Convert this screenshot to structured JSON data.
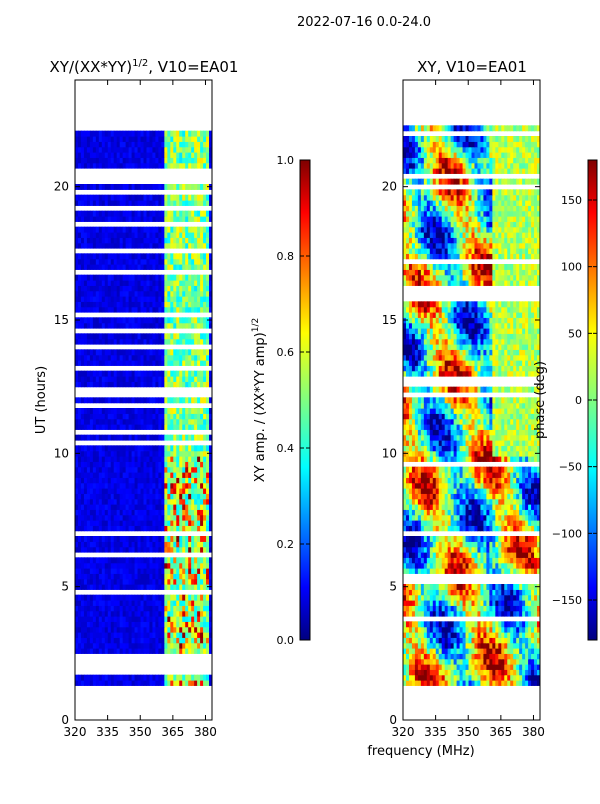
{
  "suptitle": "2022-07-16 0.0-24.0",
  "xlabel": "frequency (MHz)",
  "chart_data": [
    {
      "type": "heatmap",
      "title_main": "XY/(XX*YY)",
      "title_sup": "1/2",
      "title_tail": ", V10=EA01",
      "ylabel": "UT (hours)",
      "xlim": [
        320,
        383
      ],
      "ylim": [
        0,
        24
      ],
      "xticks": [
        320,
        335,
        350,
        365,
        380
      ],
      "yticks": [
        0,
        5,
        10,
        15,
        20
      ],
      "data_y_range": [
        1.3,
        22.3
      ],
      "colorbar": {
        "label_main": "XY amp. / (XX*YY amp)",
        "label_sup": "1/2",
        "range": [
          0.0,
          1.0
        ],
        "ticks": [
          "0.0",
          "0.2",
          "0.4",
          "0.6",
          "0.8",
          "1.0"
        ],
        "colormap": "jet"
      }
    },
    {
      "type": "heatmap",
      "title_main": "XY, V10=EA01",
      "ylabel": "",
      "xlim": [
        320,
        383
      ],
      "ylim": [
        0,
        24
      ],
      "xticks": [
        320,
        335,
        350,
        365,
        380
      ],
      "yticks": [
        0,
        5,
        10,
        15,
        20
      ],
      "data_y_range": [
        1.3,
        22.3
      ],
      "colorbar": {
        "label_main": "phase (deg)",
        "range": [
          -180,
          180
        ],
        "ticks": [
          "150",
          "100",
          "50",
          "0",
          "−50",
          "−100",
          "−150"
        ],
        "tick_values": [
          150,
          100,
          50,
          0,
          -50,
          -100,
          -150
        ],
        "colormap": "jet"
      }
    }
  ]
}
